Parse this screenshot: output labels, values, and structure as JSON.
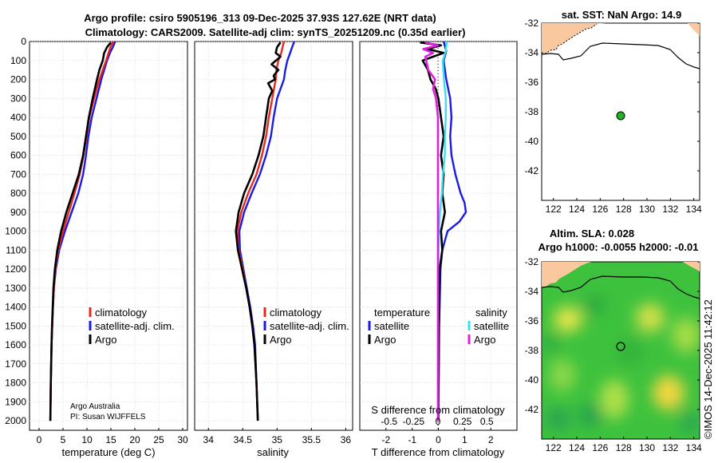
{
  "header": {
    "title1": "Argo profile: csiro 5905196_313 09-Dec-2025 37.93S 127.62E (NRT data)",
    "title2": "Climatology: CARS2009. Satellite-adj clim: synTS_20251209.nc (0.35d earlier)"
  },
  "colors": {
    "clim": "#e8281e",
    "sat": "#1a1ae6",
    "argo": "#000000",
    "sat_s": "#38e0f0",
    "argo_s": "#e01ee0",
    "land": "#f9c89f",
    "sea": "#ffffff"
  },
  "credit": {
    "line1": "Argo Australia",
    "line2": "PI: Susan WIJFFELS"
  },
  "timestamp": "©IMOS 14-Dec-2025 11:42:12",
  "chart_data": [
    {
      "type": "line",
      "panel": "temperature",
      "xlabel": "temperature (deg C)",
      "xlim": [
        -2,
        31
      ],
      "xticks": [
        0,
        5,
        10,
        15,
        20,
        25,
        30
      ],
      "ylim": [
        2050,
        0
      ],
      "yticks": [
        0,
        100,
        200,
        300,
        400,
        500,
        600,
        700,
        800,
        900,
        1000,
        1100,
        1200,
        1300,
        1400,
        1500,
        1600,
        1700,
        1800,
        1900,
        2000
      ],
      "legend": [
        "climatology",
        "satellite-adj. clim.",
        "Argo"
      ],
      "series": [
        {
          "name": "climatology",
          "depth": [
            0,
            30,
            60,
            100,
            150,
            200,
            300,
            400,
            500,
            600,
            700,
            800,
            900,
            1000,
            1100,
            1200,
            1300,
            1400,
            1500,
            1600,
            1800,
            2000
          ],
          "values": [
            15.5,
            14.9,
            14.5,
            14.0,
            13.3,
            12.6,
            11.5,
            10.5,
            9.9,
            9.3,
            8.5,
            7.4,
            6.2,
            5.0,
            4.0,
            3.4,
            3.1,
            2.9,
            2.75,
            2.6,
            2.45,
            2.35
          ]
        },
        {
          "name": "satellite-adj. clim.",
          "depth": [
            0,
            30,
            60,
            100,
            150,
            200,
            300,
            400,
            500,
            600,
            700,
            800,
            900,
            1000,
            1100,
            1200,
            1300,
            1400,
            1500,
            1600,
            1800,
            2000
          ],
          "values": [
            15.9,
            15.4,
            14.8,
            14.2,
            13.6,
            13.0,
            12.0,
            11.0,
            10.3,
            9.8,
            9.2,
            8.2,
            6.8,
            5.4,
            4.2,
            3.5,
            3.1,
            2.9,
            2.75,
            2.6,
            2.45,
            2.35
          ]
        },
        {
          "name": "Argo",
          "depth": [
            5,
            30,
            60,
            100,
            150,
            200,
            300,
            400,
            500,
            600,
            700,
            800,
            900,
            1000,
            1100,
            1200,
            1300,
            1400,
            1500,
            1600,
            1800,
            2000
          ],
          "values": [
            15.0,
            14.2,
            13.6,
            13.3,
            12.6,
            12.1,
            11.2,
            10.4,
            9.8,
            9.2,
            8.3,
            7.0,
            5.7,
            4.6,
            3.8,
            3.3,
            3.0,
            2.85,
            2.7,
            2.6,
            2.45,
            2.35
          ]
        }
      ]
    },
    {
      "type": "line",
      "panel": "salinity",
      "xlabel": "salinity",
      "xlim": [
        33.8,
        36.1
      ],
      "xticks": [
        34,
        34.5,
        35,
        35.5,
        36
      ],
      "xticklabels": [
        "34",
        "34.5",
        "35",
        "35.5",
        "36"
      ],
      "ylim": [
        2050,
        0
      ],
      "legend": [
        "climatology",
        "satellite-adj. clim.",
        "Argo"
      ],
      "series": [
        {
          "name": "climatology",
          "depth": [
            0,
            30,
            60,
            100,
            150,
            200,
            300,
            400,
            500,
            600,
            700,
            800,
            900,
            1000,
            1100,
            1200,
            1300,
            1400,
            1500,
            1600,
            1800,
            2000
          ],
          "values": [
            35.1,
            35.08,
            35.06,
            35.02,
            34.99,
            34.98,
            34.93,
            34.88,
            34.84,
            34.78,
            34.7,
            34.58,
            34.48,
            34.42,
            34.44,
            34.5,
            34.55,
            34.6,
            34.64,
            34.67,
            34.7,
            34.72
          ]
        },
        {
          "name": "satellite-adj. clim.",
          "depth": [
            0,
            30,
            60,
            100,
            150,
            200,
            300,
            400,
            500,
            600,
            700,
            800,
            900,
            1000,
            1100,
            1200,
            1300,
            1400,
            1500,
            1600,
            1800,
            2000
          ],
          "values": [
            35.25,
            35.22,
            35.19,
            35.15,
            35.12,
            35.1,
            35.0,
            34.95,
            34.91,
            34.84,
            34.75,
            34.63,
            34.52,
            34.45,
            34.46,
            34.51,
            34.56,
            34.61,
            34.65,
            34.68,
            34.7,
            34.72
          ]
        },
        {
          "name": "Argo",
          "depth": [
            5,
            30,
            60,
            80,
            120,
            150,
            180,
            200,
            220,
            260,
            300,
            350,
            400,
            500,
            600,
            700,
            800,
            900,
            1000,
            1100,
            1200,
            1300,
            1400,
            1500,
            1600,
            1800,
            2000
          ],
          "values": [
            35.05,
            35.0,
            34.98,
            35.05,
            34.92,
            35.02,
            34.95,
            34.97,
            34.87,
            34.93,
            34.88,
            34.86,
            34.84,
            34.8,
            34.73,
            34.64,
            34.52,
            34.44,
            34.4,
            34.43,
            34.49,
            34.55,
            34.6,
            34.64,
            34.67,
            34.7,
            34.72
          ]
        }
      ]
    },
    {
      "type": "line",
      "panel": "difference",
      "xlabel": "T difference from climatology",
      "xlabel2": "S difference from climatology",
      "xlim": [
        -3,
        3
      ],
      "xticks": [
        -2,
        -1,
        0,
        1,
        2
      ],
      "xticks2": [
        -0.5,
        -0.25,
        0,
        0.25,
        0.5
      ],
      "xticklabels2": [
        "-0.5",
        "-0.25",
        "0",
        "0.25",
        "0.5"
      ],
      "ylim": [
        2050,
        0
      ],
      "legend_titles": [
        "temperature",
        "salinity"
      ],
      "legend": [
        "satellite",
        "Argo",
        "satellite",
        "Argo"
      ],
      "series": [
        {
          "name": "T satellite",
          "depth": [
            0,
            50,
            100,
            200,
            300,
            400,
            500,
            600,
            700,
            800,
            850,
            900,
            950,
            1000,
            1100,
            1200,
            1500,
            2000
          ],
          "values": [
            0.2,
            0.3,
            0.2,
            0.3,
            0.45,
            0.5,
            0.45,
            0.5,
            0.65,
            0.85,
            1.0,
            1.05,
            0.8,
            0.35,
            0.15,
            0.08,
            0.03,
            0.0
          ]
        },
        {
          "name": "T Argo",
          "depth": [
            5,
            20,
            40,
            60,
            80,
            100,
            150,
            200,
            250,
            300,
            400,
            500,
            600,
            700,
            800,
            900,
            1000,
            1100,
            1200,
            1500,
            2000
          ],
          "values": [
            -0.7,
            0.1,
            -0.4,
            0.2,
            -0.2,
            -0.6,
            -0.4,
            -0.3,
            -0.1,
            0.0,
            0.1,
            0.2,
            0.1,
            0.2,
            0.15,
            0.25,
            0.1,
            0.15,
            0.05,
            0.02,
            0.0
          ]
        },
        {
          "name": "S satellite",
          "depth": [
            0,
            50,
            100,
            200,
            300,
            400,
            500,
            600,
            700,
            800,
            900,
            1000,
            1200,
            1500,
            2000
          ],
          "values": [
            0.09,
            0.08,
            0.05,
            0.06,
            0.08,
            0.08,
            0.07,
            0.07,
            0.05,
            0.04,
            0.02,
            0.01,
            0.0,
            0.0,
            0.0
          ]
        },
        {
          "name": "S Argo",
          "depth": [
            5,
            20,
            40,
            60,
            80,
            100,
            150,
            200,
            250,
            300,
            400,
            600,
            800,
            1000,
            1200,
            1500,
            2000
          ],
          "values": [
            -0.13,
            0.0,
            -0.15,
            -0.05,
            -0.13,
            -0.12,
            -0.1,
            -0.03,
            -0.05,
            -0.02,
            0.0,
            0.0,
            0.0,
            0.0,
            0.0,
            0.0,
            0.0
          ]
        }
      ]
    },
    {
      "type": "map",
      "panel": "sst-map",
      "title": "sat. SST: NaN Argo: 14.9",
      "xlim": [
        121,
        134.5
      ],
      "ylim": [
        -44,
        -32
      ],
      "xticks": [
        122,
        124,
        126,
        128,
        130,
        132,
        134
      ],
      "yticks": [
        -32,
        -34,
        -36,
        -38,
        -40,
        -42
      ],
      "argo_position": {
        "lon": 127.62,
        "lat": -37.93
      }
    },
    {
      "type": "map",
      "panel": "sla-map",
      "title1": "Altim. SLA: 0.028",
      "title2": "Argo h1000: -0.0055 h2000: -0.01",
      "xlim": [
        121,
        134.5
      ],
      "ylim": [
        -44,
        -32
      ],
      "xticks": [
        122,
        124,
        126,
        128,
        130,
        132,
        134
      ],
      "yticks": [
        -32,
        -34,
        -36,
        -38,
        -40,
        -42
      ],
      "argo_position": {
        "lon": 127.62,
        "lat": -37.93
      }
    }
  ]
}
